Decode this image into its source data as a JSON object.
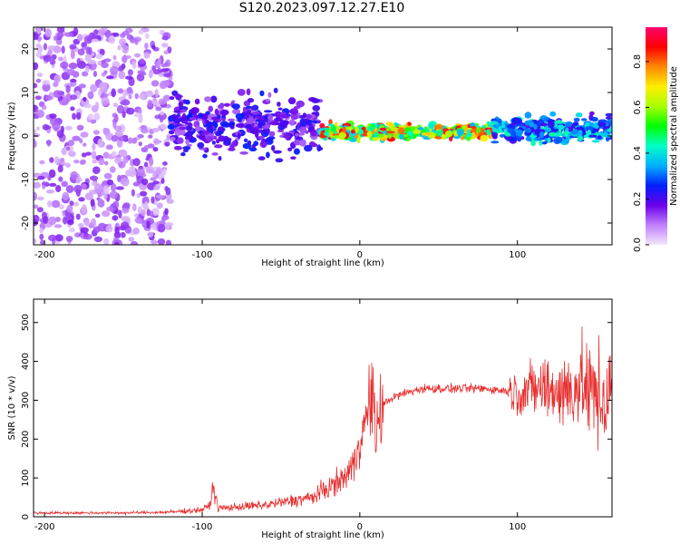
{
  "title": "S120.2023.097.12.27.E10",
  "chart_data": [
    {
      "type": "heatmap",
      "xlabel": "Height of straight line (km)",
      "ylabel": "Frequency (Hz)",
      "xlim": [
        -207,
        160
      ],
      "ylim": [
        -25,
        25
      ],
      "x_ticks": [
        -200,
        -100,
        0,
        100
      ],
      "y_ticks": [
        -20,
        -10,
        0,
        10,
        20
      ],
      "colorbar": {
        "label": "Normalized spectral amplitude",
        "range": [
          0.0,
          0.95
        ],
        "ticks": [
          0.0,
          0.2,
          0.4,
          0.6,
          0.8
        ],
        "colormap": [
          "#f2e6fa",
          "#c080ff",
          "#6a00e8",
          "#0020ff",
          "#00b0ff",
          "#00ffc8",
          "#00ff00",
          "#a8ff00",
          "#ffee00",
          "#ff8800",
          "#ff0000",
          "#ff0070"
        ]
      },
      "regions": [
        {
          "x_range": [
            -207,
            -120
          ],
          "freq_range": [
            -25,
            25
          ],
          "amplitude": 0.05,
          "description": "scattered noise"
        },
        {
          "x_range": [
            -120,
            -25
          ],
          "freq_range": [
            -5,
            10
          ],
          "amplitude": 0.2
        },
        {
          "x_range": [
            -25,
            85
          ],
          "freq_range": [
            -1,
            3
          ],
          "amplitude": 0.7
        },
        {
          "x_range": [
            85,
            160
          ],
          "freq_range": [
            -2,
            5
          ],
          "amplitude": 0.35
        }
      ]
    },
    {
      "type": "line",
      "xlabel": "Height of straight line (km)",
      "ylabel": "SNR (10 * v/v)",
      "xlim": [
        -207,
        160
      ],
      "ylim": [
        0,
        560
      ],
      "x_ticks": [
        -200,
        -100,
        0,
        100
      ],
      "y_ticks": [
        0,
        100,
        200,
        300,
        400,
        500
      ],
      "series": [
        {
          "color": "#e83030",
          "x": [
            -207,
            -150,
            -120,
            -100,
            -95,
            -93,
            -90,
            -60,
            -30,
            -10,
            -3,
            0,
            3,
            5,
            8,
            10,
            12,
            15,
            20,
            30,
            40,
            60,
            80,
            90,
            100,
            110,
            120,
            130,
            140,
            150,
            155,
            160
          ],
          "y": [
            10,
            10,
            12,
            18,
            30,
            80,
            22,
            30,
            50,
            100,
            140,
            210,
            230,
            270,
            320,
            200,
            260,
            290,
            305,
            320,
            330,
            330,
            330,
            325,
            320,
            330,
            330,
            320,
            340,
            310,
            300,
            320
          ]
        }
      ]
    }
  ]
}
